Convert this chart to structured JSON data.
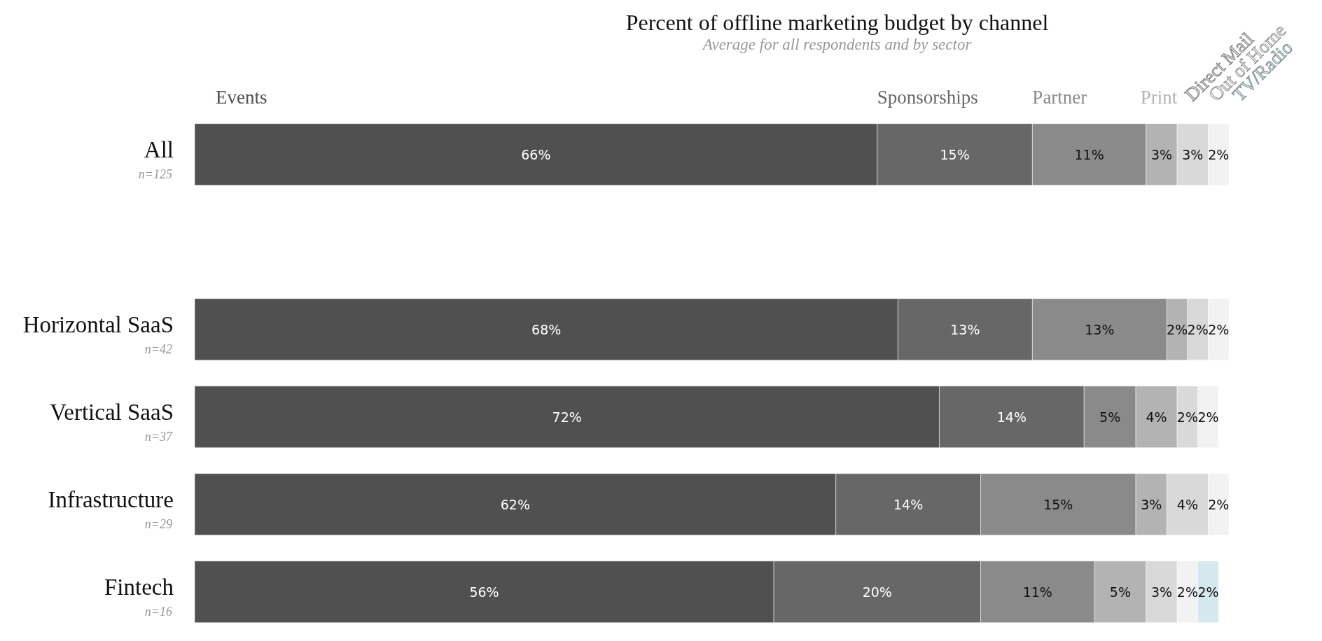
{
  "chart_data": {
    "type": "bar",
    "orientation": "horizontal",
    "stacked": true,
    "title": "Percent of offline marketing budget by channel",
    "subtitle": "Average for all respondents and by sector",
    "categories": [
      "All",
      null,
      "Horizontal SaaS",
      "Vertical SaaS",
      "Infrastructure",
      "Fintech"
    ],
    "annotations": [
      "n=125",
      "n=42",
      "n=37",
      "n=29",
      "n=16"
    ],
    "series": [
      {
        "name": "Events",
        "color": "#505050",
        "values": [
          66,
          null,
          68,
          72,
          62,
          56
        ],
        "value_labels": [
          "66%",
          null,
          "68%",
          "72%",
          "62%",
          "56%"
        ]
      },
      {
        "name": "Sponsorships",
        "color": "#676767",
        "values": [
          15,
          null,
          13,
          14,
          14,
          20
        ],
        "value_labels": [
          "15%",
          null,
          "13%",
          "14%",
          "14%",
          "20%"
        ]
      },
      {
        "name": "Partner",
        "color": "#8a8a8a",
        "values": [
          11,
          null,
          13,
          5,
          15,
          11
        ],
        "value_labels": [
          "11%",
          null,
          "13%",
          "5%",
          "15%",
          "11%"
        ]
      },
      {
        "name": "Print",
        "color": "#b3b3b3",
        "values": [
          3,
          null,
          2,
          4,
          3,
          5
        ],
        "value_labels": [
          "3%",
          null,
          "2%",
          "4%",
          "3%",
          "5%"
        ]
      },
      {
        "name": "Direct Mail",
        "color": "#d9d9d9",
        "values": [
          3,
          null,
          2,
          2,
          4,
          3
        ],
        "value_labels": [
          "3%",
          null,
          "2%",
          "2%",
          "4%",
          "3%"
        ]
      },
      {
        "name": "Out of Home",
        "color": "#f2f2f2",
        "values": [
          2,
          null,
          2,
          2,
          2,
          2
        ],
        "value_labels": [
          "2%",
          null,
          "2%",
          "2%",
          "2%",
          "2%"
        ]
      },
      {
        "name": "TV/Radio",
        "color": "#d5e8ed",
        "values": [
          null,
          null,
          null,
          null,
          null,
          2
        ],
        "value_labels": [
          null,
          null,
          null,
          null,
          null,
          "2%"
        ]
      }
    ],
    "legend": "top"
  }
}
